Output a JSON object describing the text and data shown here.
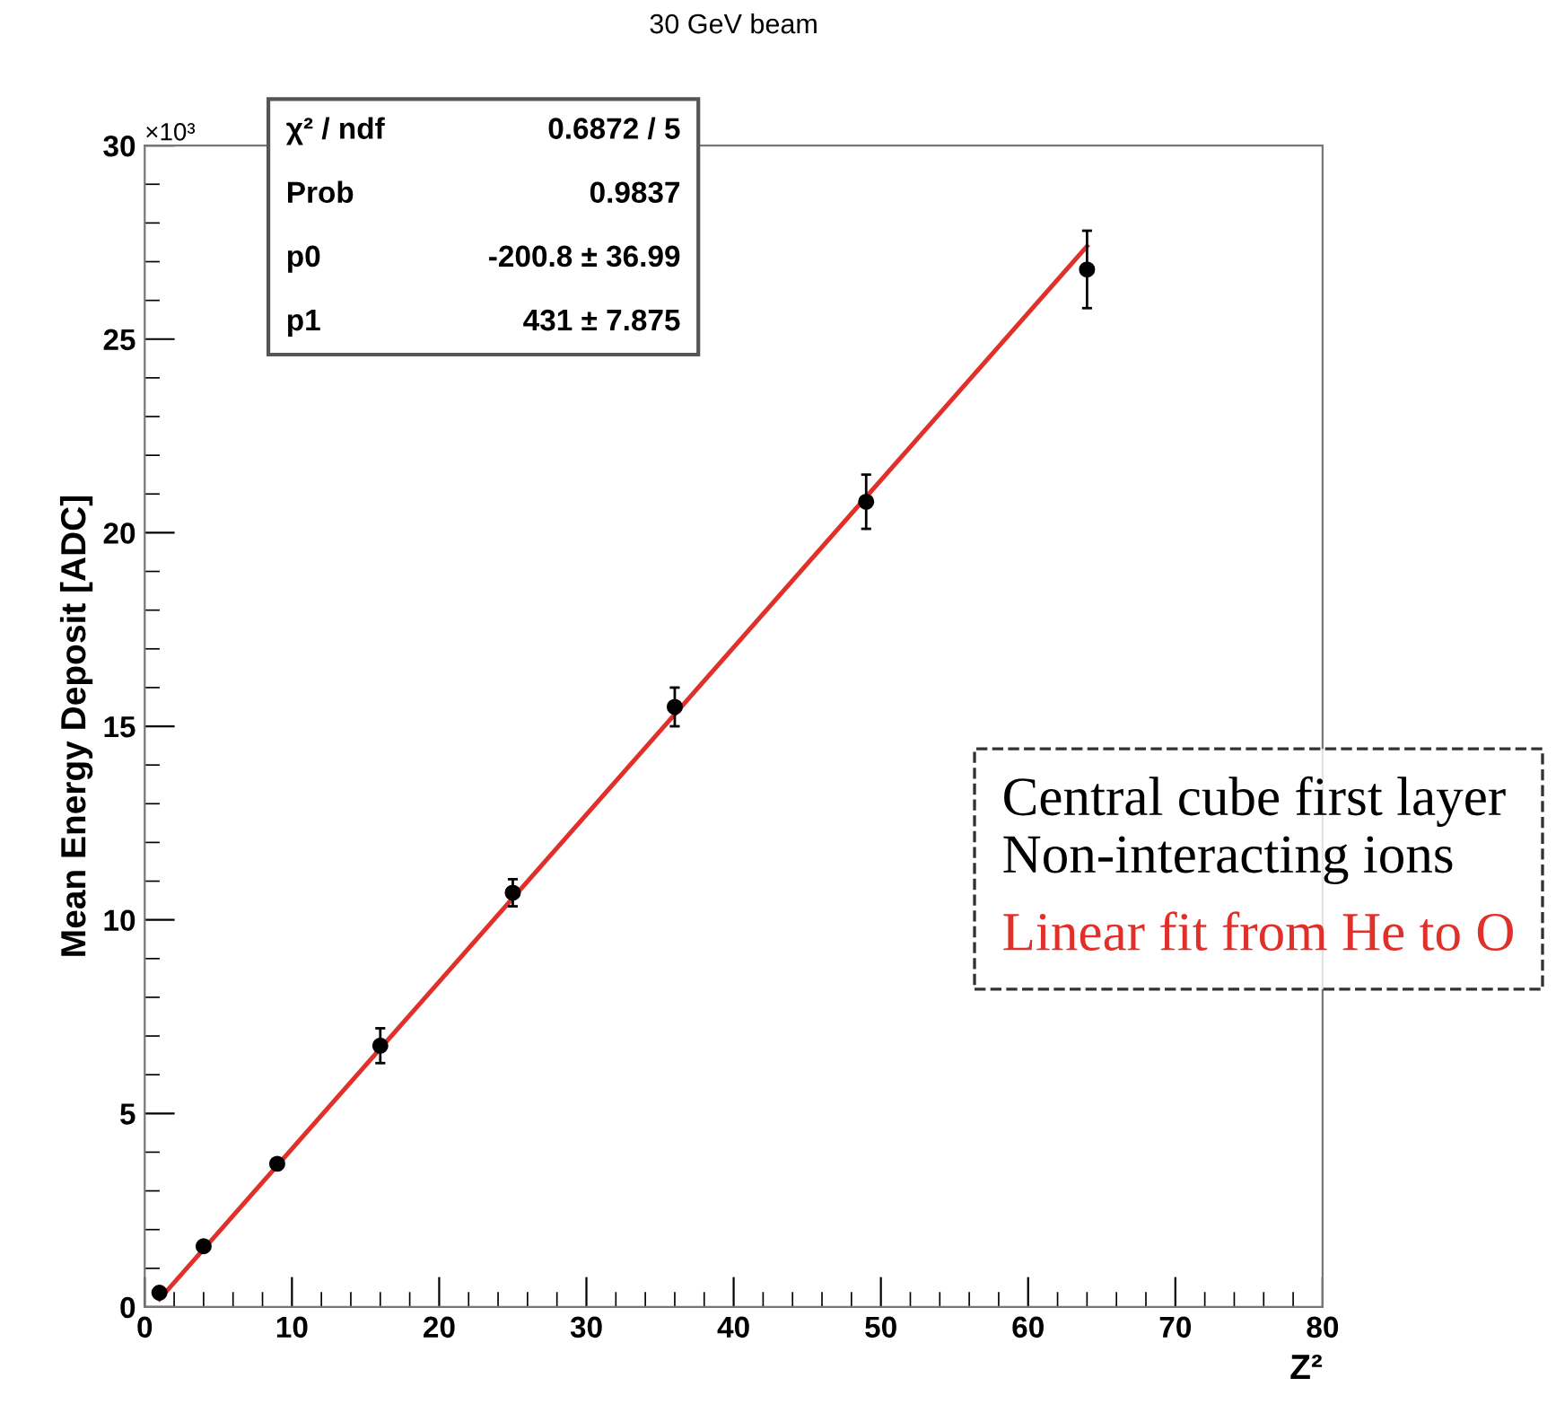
{
  "chart_data": {
    "type": "scatter",
    "title": "30 GeV beam",
    "xlabel": "Z²",
    "ylabel": "Mean Energy Deposit [ADC]",
    "xlim": [
      0,
      80
    ],
    "xticks": [
      0,
      10,
      20,
      30,
      40,
      50,
      60,
      70,
      80
    ],
    "ylim": [
      0,
      30
    ],
    "yticks": [
      0,
      5,
      10,
      15,
      20,
      25,
      30
    ],
    "series": [
      {
        "name": "Central cube first layer\nNon-interacting ions",
        "color": "#000000",
        "marker": "circle",
        "x": [
          1,
          4,
          9,
          16,
          25,
          36,
          49,
          64
        ],
        "values": [
          0.37,
          1.57,
          3.7,
          6.75,
          10.7,
          15.5,
          20.8,
          26.8
        ],
        "errors": [
          null,
          null,
          null,
          0.45,
          0.35,
          0.5,
          0.7,
          1.0
        ]
      },
      {
        "name": "Linear fit from He to O",
        "color": "#e0302a",
        "type": "line",
        "line_style": "solid",
        "x": [
          1,
          64
        ],
        "values": [
          0.2,
          27.4
        ]
      }
    ],
    "annotations": [
      "×10³",
      "χ² / ndf",
      "0.6872 / 5",
      "Prob",
      "0.9837",
      "p0",
      "-200.8 ± 36.99",
      "p1",
      "431 ± 7.875"
    ],
    "legend": "bottom right",
    "grid": false
  }
}
